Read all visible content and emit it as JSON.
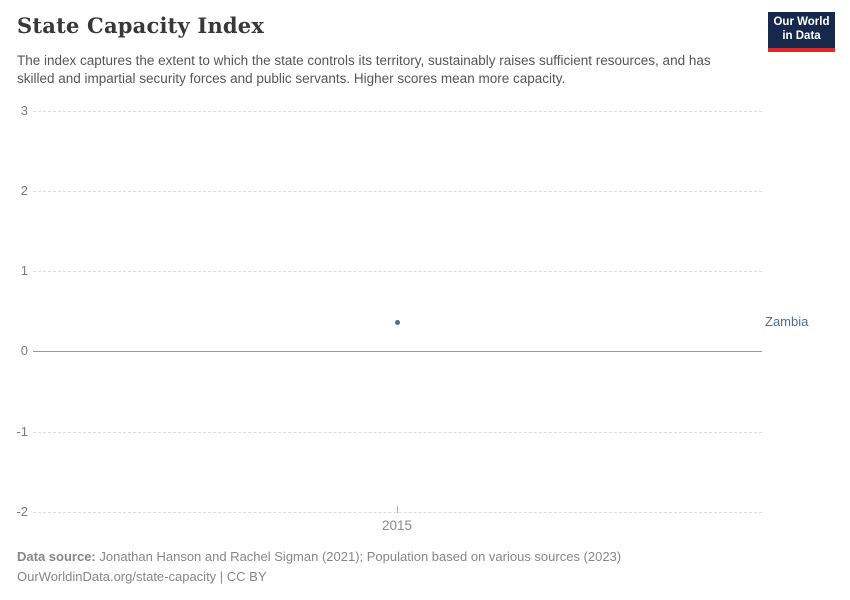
{
  "header": {
    "title": "State Capacity Index",
    "subtitle": "The index captures the extent to which the state controls its territory, sustainably raises sufficient resources, and has skilled and impartial security forces and public servants. Higher scores mean more capacity.",
    "logo": {
      "line1": "Our World",
      "line2": "in Data",
      "bg_color": "#16294c",
      "stripe_color": "#dc2a28"
    }
  },
  "chart_data": {
    "type": "scatter",
    "title": "State Capacity Index",
    "xlabel": "",
    "ylabel": "",
    "x_ticks": [
      2015
    ],
    "y_ticks": [
      3,
      2,
      1,
      0,
      -1,
      -2
    ],
    "ylim": [
      -2,
      3
    ],
    "grid": "horizontal-dashed",
    "zero_line": true,
    "legend_position": "right-entity-label",
    "series": [
      {
        "name": "Zambia",
        "color": "#4c6a9c",
        "points": [
          {
            "x": 2015,
            "y": 0.36
          }
        ]
      }
    ]
  },
  "footer": {
    "datasource_label": "Data source:",
    "datasource_text": " Jonathan Hanson and Rachel Sigman (2021); Population based on various sources (2023)",
    "url_line": "OurWorldinData.org/state-capacity | CC BY"
  }
}
